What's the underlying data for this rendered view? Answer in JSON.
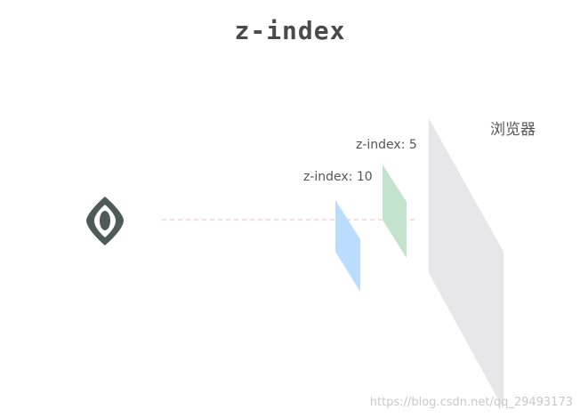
{
  "title": "z-index",
  "layers": {
    "green_label": "z-index: 5",
    "blue_label": "z-index: 10",
    "browser_label": "浏览器"
  },
  "watermark": "https://blog.csdn.net/qq_29493173",
  "colors": {
    "eye": "#4d5a58",
    "sight_line": "#f4b8be",
    "blue_layer": "#b9dcff",
    "green_layer": "#c4e3cc",
    "browser_layer": "#e7e6e8",
    "title": "#4a4a4a"
  },
  "icons": {
    "viewer": "eye-icon"
  }
}
